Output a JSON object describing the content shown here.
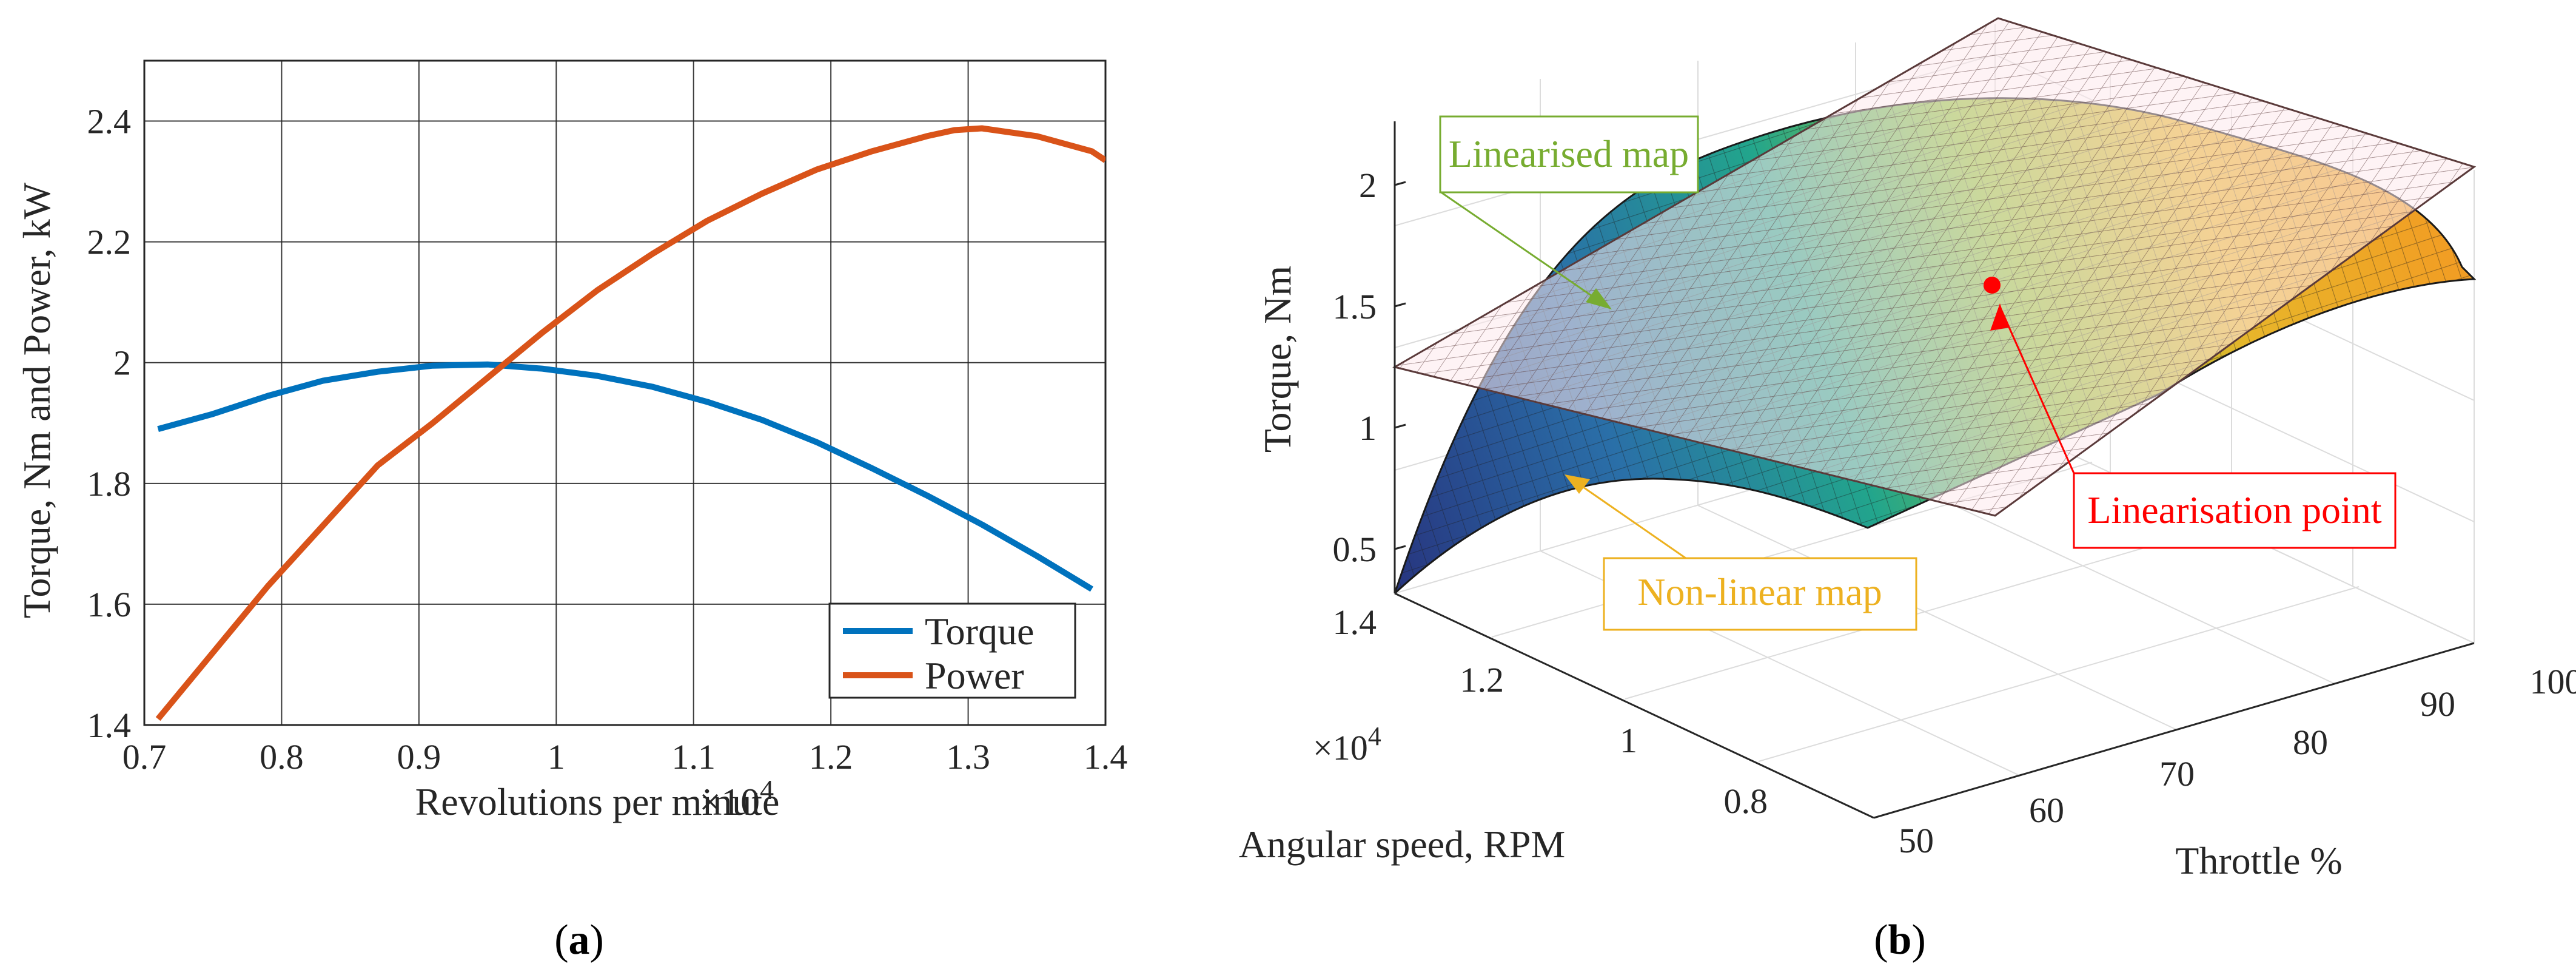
{
  "chart_data": [
    {
      "panel": "a",
      "type": "line",
      "caption_prefix": "(",
      "caption_letter": "a",
      "caption_suffix": ")",
      "xlabel": "Revolutions per minute",
      "x_multiplier": "×10",
      "x_multiplier_exp": "4",
      "ylabel": "Torque, Nm and Power, kW",
      "xlim": [
        0.7,
        1.4
      ],
      "ylim": [
        1.4,
        2.5
      ],
      "xticks": [
        "0.7",
        "0.8",
        "0.9",
        "1",
        "1.1",
        "1.2",
        "1.3",
        "1.4"
      ],
      "yticks": [
        "1.4",
        "1.6",
        "1.8",
        "2",
        "2.2",
        "2.4"
      ],
      "grid": true,
      "legend_position": "bottom-right",
      "series": [
        {
          "name": "Torque",
          "color": "#0072BD",
          "x": [
            0.71,
            0.75,
            0.79,
            0.83,
            0.87,
            0.91,
            0.95,
            0.99,
            1.03,
            1.07,
            1.11,
            1.15,
            1.19,
            1.23,
            1.27,
            1.31,
            1.35,
            1.39
          ],
          "y": [
            1.89,
            1.915,
            1.945,
            1.97,
            1.985,
            1.995,
            1.997,
            1.99,
            1.978,
            1.96,
            1.935,
            1.905,
            1.868,
            1.825,
            1.78,
            1.732,
            1.68,
            1.625
          ]
        },
        {
          "name": "Power",
          "color": "#D95319",
          "x": [
            0.71,
            0.75,
            0.79,
            0.83,
            0.87,
            0.91,
            0.95,
            0.99,
            1.03,
            1.07,
            1.11,
            1.15,
            1.19,
            1.23,
            1.27,
            1.29,
            1.31,
            1.35,
            1.39,
            1.4
          ],
          "y": [
            1.41,
            1.52,
            1.63,
            1.73,
            1.83,
            1.9,
            1.975,
            2.05,
            2.12,
            2.18,
            2.235,
            2.28,
            2.32,
            2.35,
            2.375,
            2.385,
            2.388,
            2.375,
            2.35,
            2.335
          ]
        }
      ]
    },
    {
      "panel": "b",
      "type": "surface3d",
      "caption_prefix": "(",
      "caption_letter": "b",
      "caption_suffix": ")",
      "zlabel": "Torque, Nm",
      "ylabel": "Angular speed, RPM",
      "y_multiplier": "×10",
      "y_multiplier_exp": "4",
      "xlabel": "Throttle %",
      "zticks": [
        "0.5",
        "1",
        "1.5",
        "2"
      ],
      "yticks": [
        "1.4",
        "1.2",
        "1",
        "0.8"
      ],
      "xticks": [
        "50",
        "60",
        "70",
        "80",
        "90",
        "100"
      ],
      "annotations": [
        {
          "text": "Linearised map",
          "color": "#77AC30"
        },
        {
          "text": "Linearisation point",
          "color": "#FF0000"
        },
        {
          "text": "Non-linear map",
          "color": "#EDB120"
        }
      ],
      "colors": {
        "plane_fill": "#fde9ec",
        "plane_grid": "#5a3a3a",
        "surface_low": "#2a3a9a",
        "surface_mid": "#2aa88a",
        "surface_high": "#f5a623"
      }
    }
  ]
}
